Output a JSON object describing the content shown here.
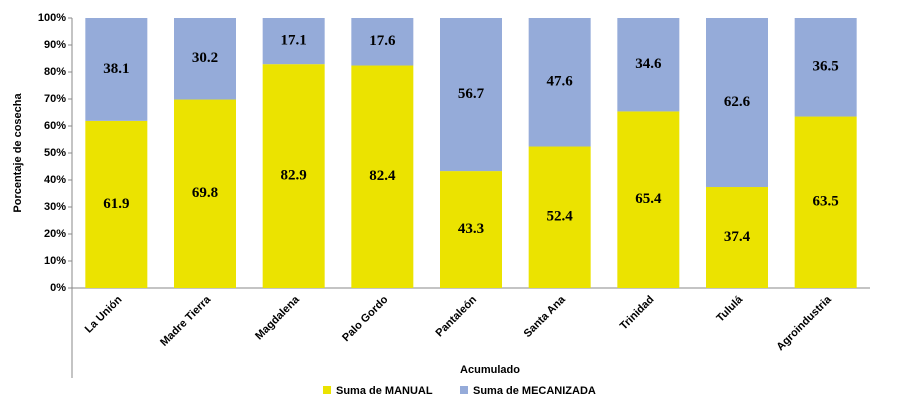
{
  "chart_data": {
    "type": "stacked_bar",
    "x_label": "Acumulado",
    "y_label": "Porcentaje de cosecha",
    "categories": [
      "La Unión",
      "Madre Tierra",
      "Magdalena",
      "Palo Gordo",
      "Pantaleón",
      "Santa Ana",
      "Trinidad",
      "Tululá",
      "Agroindustria"
    ],
    "series": [
      {
        "name": "Suma de MANUAL",
        "color": "#ebe300",
        "values": [
          61.9,
          69.8,
          82.9,
          82.4,
          43.3,
          52.4,
          65.4,
          37.4,
          63.5
        ]
      },
      {
        "name": "Suma de MECANIZADA",
        "color": "#95abd9",
        "values": [
          38.1,
          30.2,
          17.1,
          17.6,
          56.7,
          47.6,
          34.6,
          62.6,
          36.5
        ]
      }
    ],
    "ylim": [
      0,
      100
    ],
    "yticks": [
      {
        "value": 0,
        "label": "0%"
      },
      {
        "value": 10,
        "label": "10%"
      },
      {
        "value": 20,
        "label": "20%"
      },
      {
        "value": 30,
        "label": "30%"
      },
      {
        "value": 40,
        "label": "40%"
      },
      {
        "value": 50,
        "label": "50%"
      },
      {
        "value": 60,
        "label": "60%"
      },
      {
        "value": 70,
        "label": "70%"
      },
      {
        "value": 80,
        "label": "80%"
      },
      {
        "value": 90,
        "label": "90%"
      },
      {
        "value": 100,
        "label": "100%"
      }
    ],
    "grid": false,
    "legend": "bottom"
  }
}
